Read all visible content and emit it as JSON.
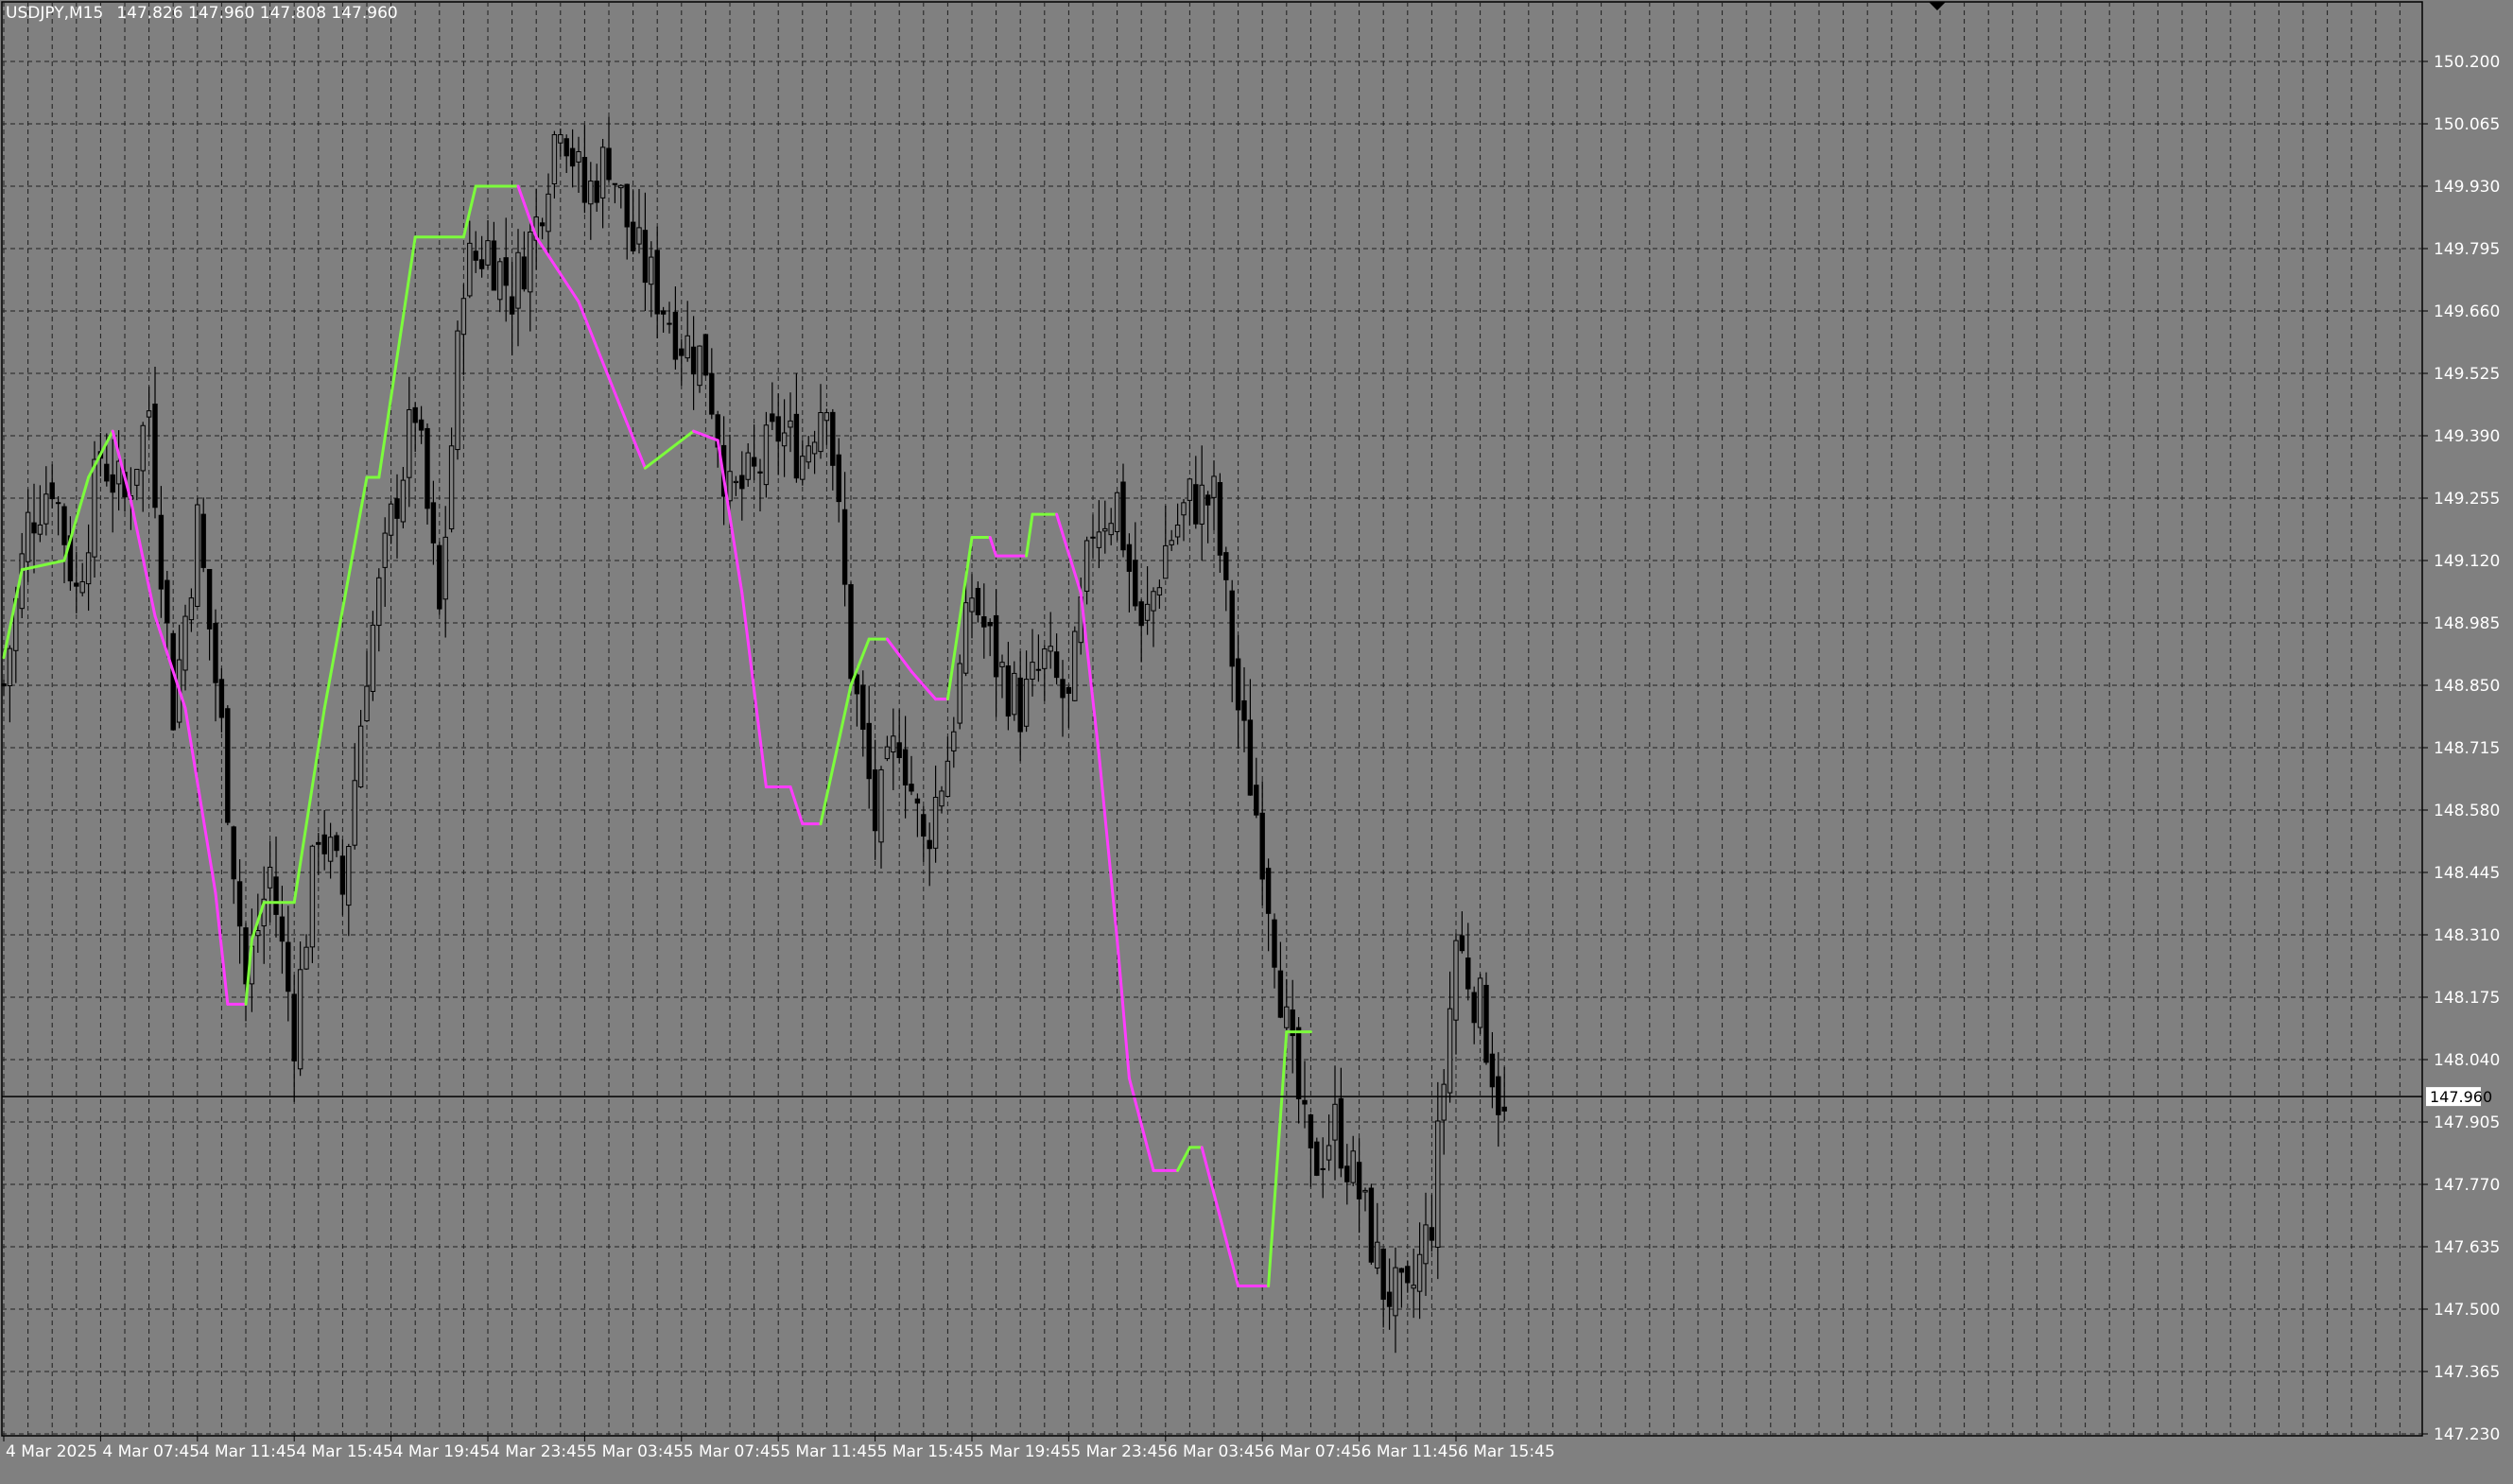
{
  "header": {
    "symbol_timeframe": "USDJPY,M15",
    "ohlc": "147.826 147.960 147.808 147.960"
  },
  "chart_data": {
    "type": "candlestick",
    "symbol": "USDJPY",
    "timeframe": "M15",
    "ylim": [
      147.23,
      150.27
    ],
    "y_ticks": [
      "150.200",
      "150.065",
      "149.930",
      "149.795",
      "149.660",
      "149.525",
      "149.390",
      "149.255",
      "149.120",
      "148.985",
      "148.850",
      "148.715",
      "148.580",
      "148.445",
      "148.310",
      "148.175",
      "148.040",
      "147.905",
      "147.770",
      "147.635",
      "147.500",
      "147.365",
      "147.230"
    ],
    "x_ticks": [
      "4 Mar 2025",
      "4 Mar 07:45",
      "4 Mar 11:45",
      "4 Mar 15:45",
      "4 Mar 19:45",
      "4 Mar 23:45",
      "5 Mar 03:45",
      "5 Mar 07:45",
      "5 Mar 11:45",
      "5 Mar 15:45",
      "5 Mar 19:45",
      "5 Mar 23:45",
      "6 Mar 03:45",
      "6 Mar 07:45",
      "6 Mar 11:45",
      "6 Mar 15:45"
    ],
    "bars_per_tick": 16,
    "current_price": "147.960",
    "grid": true,
    "colors": {
      "background": "#808080",
      "grid": "#1f1f1f",
      "candle_outline": "#000000",
      "bull_body": "#808080",
      "bear_body": "#000000",
      "indicator_up": "#7cfc3c",
      "indicator_down": "#ff3cff",
      "text": "#ffffff",
      "price_label_bg": "#ffffff",
      "price_label_text": "#000000"
    },
    "close_path": [
      [
        0,
        148.85
      ],
      [
        4,
        149.2
      ],
      [
        8,
        149.3
      ],
      [
        12,
        149.05
      ],
      [
        16,
        149.35
      ],
      [
        20,
        149.25
      ],
      [
        24,
        149.45
      ],
      [
        28,
        148.8
      ],
      [
        32,
        149.2
      ],
      [
        36,
        148.75
      ],
      [
        40,
        148.2
      ],
      [
        44,
        148.45
      ],
      [
        48,
        148.1
      ],
      [
        52,
        148.55
      ],
      [
        56,
        148.4
      ],
      [
        60,
        148.9
      ],
      [
        64,
        149.2
      ],
      [
        68,
        149.45
      ],
      [
        72,
        149.0
      ],
      [
        76,
        149.75
      ],
      [
        80,
        149.8
      ],
      [
        84,
        149.7
      ],
      [
        88,
        149.85
      ],
      [
        92,
        150.1
      ],
      [
        96,
        149.9
      ],
      [
        100,
        150.0
      ],
      [
        104,
        149.8
      ],
      [
        108,
        149.7
      ],
      [
        112,
        149.6
      ],
      [
        116,
        149.55
      ],
      [
        120,
        149.25
      ],
      [
        124,
        149.3
      ],
      [
        128,
        149.4
      ],
      [
        132,
        149.35
      ],
      [
        136,
        149.5
      ],
      [
        140,
        148.9
      ],
      [
        144,
        148.55
      ],
      [
        148,
        148.75
      ],
      [
        152,
        148.5
      ],
      [
        156,
        148.7
      ],
      [
        160,
        149.05
      ],
      [
        164,
        148.9
      ],
      [
        168,
        148.8
      ],
      [
        172,
        148.9
      ],
      [
        176,
        148.8
      ],
      [
        180,
        149.2
      ],
      [
        184,
        149.25
      ],
      [
        188,
        148.95
      ],
      [
        192,
        149.15
      ],
      [
        196,
        149.25
      ],
      [
        200,
        149.25
      ],
      [
        204,
        148.8
      ],
      [
        208,
        148.5
      ],
      [
        212,
        148.1
      ],
      [
        216,
        147.8
      ],
      [
        220,
        147.9
      ],
      [
        224,
        147.75
      ],
      [
        228,
        147.55
      ],
      [
        232,
        147.5
      ],
      [
        236,
        147.7
      ],
      [
        240,
        148.3
      ],
      [
        244,
        148.15
      ],
      [
        248,
        147.9
      ]
    ],
    "indicator": [
      [
        0,
        148.91,
        "up"
      ],
      [
        3,
        149.1,
        "up"
      ],
      [
        10,
        149.12,
        "up"
      ],
      [
        14,
        149.3,
        "up"
      ],
      [
        18,
        149.4,
        "up"
      ],
      [
        21,
        149.25,
        "down"
      ],
      [
        25,
        149.0,
        "down"
      ],
      [
        30,
        148.8,
        "down"
      ],
      [
        35,
        148.4,
        "down"
      ],
      [
        37,
        148.16,
        "down"
      ],
      [
        40,
        148.16,
        "down"
      ],
      [
        41,
        148.3,
        "up"
      ],
      [
        43,
        148.38,
        "up"
      ],
      [
        48,
        148.38,
        "up"
      ],
      [
        53,
        148.8,
        "up"
      ],
      [
        60,
        149.3,
        "up"
      ],
      [
        62,
        149.3,
        "up"
      ],
      [
        68,
        149.82,
        "up"
      ],
      [
        76,
        149.82,
        "up"
      ],
      [
        78,
        149.93,
        "up"
      ],
      [
        85,
        149.93,
        "up"
      ],
      [
        88,
        149.82,
        "down"
      ],
      [
        95,
        149.68,
        "down"
      ],
      [
        102,
        149.45,
        "down"
      ],
      [
        106,
        149.32,
        "down"
      ],
      [
        109,
        149.35,
        "up"
      ],
      [
        114,
        149.4,
        "up"
      ],
      [
        118,
        149.38,
        "down"
      ],
      [
        122,
        149.05,
        "down"
      ],
      [
        126,
        148.63,
        "down"
      ],
      [
        130,
        148.63,
        "down"
      ],
      [
        132,
        148.55,
        "down"
      ],
      [
        135,
        148.55,
        "down"
      ],
      [
        140,
        148.85,
        "up"
      ],
      [
        143,
        148.95,
        "up"
      ],
      [
        146,
        148.95,
        "up"
      ],
      [
        150,
        148.88,
        "down"
      ],
      [
        154,
        148.82,
        "down"
      ],
      [
        156,
        148.82,
        "down"
      ],
      [
        160,
        149.17,
        "up"
      ],
      [
        163,
        149.17,
        "up"
      ],
      [
        164,
        149.13,
        "down"
      ],
      [
        169,
        149.13,
        "down"
      ],
      [
        170,
        149.22,
        "up"
      ],
      [
        174,
        149.22,
        "up"
      ],
      [
        178,
        149.05,
        "down"
      ],
      [
        181,
        148.7,
        "down"
      ],
      [
        184,
        148.3,
        "down"
      ],
      [
        186,
        148.0,
        "down"
      ],
      [
        190,
        147.8,
        "down"
      ],
      [
        194,
        147.8,
        "down"
      ],
      [
        196,
        147.85,
        "up"
      ],
      [
        198,
        147.85,
        "up"
      ],
      [
        202,
        147.65,
        "down"
      ],
      [
        204,
        147.55,
        "down"
      ],
      [
        209,
        147.55,
        "down"
      ],
      [
        212,
        148.1,
        "up"
      ],
      [
        216,
        148.1,
        "up"
      ]
    ]
  }
}
